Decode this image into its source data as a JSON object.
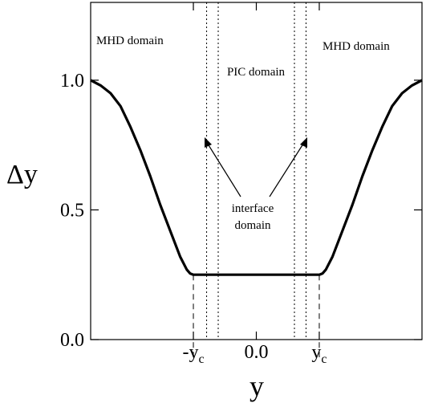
{
  "chart_data": {
    "type": "line",
    "title": "",
    "xlabel": "y",
    "ylabel": "Δy",
    "xlim": [
      -1.0,
      1.0
    ],
    "ylim": [
      0.0,
      1.3
    ],
    "y_ticks": [
      {
        "value": 0.0,
        "label": "0.0"
      },
      {
        "value": 0.5,
        "label": "0.5"
      },
      {
        "value": 1.0,
        "label": "1.0"
      }
    ],
    "x_ticks": [
      {
        "value": -0.38,
        "label": "-y",
        "sub": "c"
      },
      {
        "value": 0.0,
        "label": "0.0",
        "sub": ""
      },
      {
        "value": 0.38,
        "label": "y",
        "sub": "c"
      }
    ],
    "grid": false,
    "series": [
      {
        "x": [
          -1.0,
          -0.94,
          -0.88,
          -0.82,
          -0.76,
          -0.7,
          -0.64,
          -0.58,
          -0.52,
          -0.46,
          -0.42,
          -0.4,
          -0.38,
          0.38,
          0.4,
          0.42,
          0.46,
          0.52,
          0.58,
          0.64,
          0.7,
          0.76,
          0.82,
          0.88,
          0.94,
          1.0
        ],
        "y": [
          1.0,
          0.98,
          0.95,
          0.9,
          0.82,
          0.73,
          0.63,
          0.52,
          0.42,
          0.32,
          0.27,
          0.255,
          0.25,
          0.25,
          0.255,
          0.27,
          0.32,
          0.42,
          0.52,
          0.63,
          0.73,
          0.82,
          0.9,
          0.95,
          0.98,
          1.0
        ]
      }
    ],
    "dashed_markers_x": [
      -0.38,
      0.38
    ],
    "dotted_boundaries_x": [
      -0.3,
      -0.23,
      0.23,
      0.3
    ],
    "annotations": {
      "mhd_left": "MHD domain",
      "pic": "PIC domain",
      "mhd_right": "MHD domain",
      "interface_line1": "interface",
      "interface_line2": "domain"
    }
  }
}
